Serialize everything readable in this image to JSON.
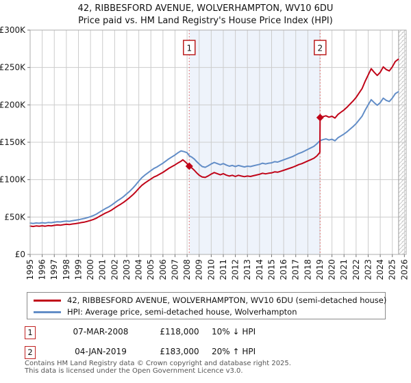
{
  "title": "42, RIBBESFORD AVENUE, WOLVERHAMPTON, WV10 6DU",
  "subtitle": "Price paid vs. HM Land Registry's House Price Index (HPI)",
  "legend": {
    "items": [
      {
        "label": "42, RIBBESFORD AVENUE, WOLVERHAMPTON, WV10 6DU (semi-detached house)",
        "color": "#c00418"
      },
      {
        "label": "HPI: Average price, semi-detached house, Wolverhampton",
        "color": "#628dc7"
      }
    ]
  },
  "annotations": [
    {
      "num": "1",
      "date": "07-MAR-2008",
      "price": "£118,000",
      "hpi_rel": "10% ↓ HPI"
    },
    {
      "num": "2",
      "date": "04-JAN-2019",
      "price": "£183,000",
      "hpi_rel": "20% ↑ HPI"
    }
  ],
  "footer": {
    "line1": "Contains HM Land Registry data © Crown copyright and database right 2025.",
    "line2": "This data is licensed under the Open Government Licence v3.0."
  },
  "chart_data": {
    "type": "line",
    "title": "42, RIBBESFORD AVENUE, WOLVERHAMPTON, WV10 6DU",
    "subtitle": "Price paid vs. HM Land Registry's House Price Index (HPI)",
    "values_unit": "GBP_thousands",
    "x_axis": {
      "min": 1995,
      "max": 2026.15,
      "ticks": [
        1995,
        1996,
        1997,
        1998,
        1999,
        2000,
        2001,
        2002,
        2003,
        2004,
        2005,
        2006,
        2007,
        2008,
        2009,
        2010,
        2011,
        2012,
        2013,
        2014,
        2015,
        2016,
        2017,
        2018,
        2019,
        2020,
        2021,
        2022,
        2023,
        2024,
        2025,
        2026
      ]
    },
    "y_axis": {
      "min": 0,
      "max": 300,
      "ticks": [
        {
          "v": 0,
          "label": "£0"
        },
        {
          "v": 50,
          "label": "£50K"
        },
        {
          "v": 100,
          "label": "£100K"
        },
        {
          "v": 150,
          "label": "£150K"
        },
        {
          "v": 200,
          "label": "£200K"
        },
        {
          "v": 250,
          "label": "£250K"
        },
        {
          "v": 300,
          "label": "£300K"
        }
      ]
    },
    "colors": {
      "price_paid": "#c00418",
      "hpi": "#628dc7",
      "sale_dash": "#e06a6a",
      "shade": "#eef3fb",
      "grid": "#cccccc",
      "spine": "#adadad",
      "hatch": "#c9c9c9",
      "sale_box_border": "#bb1c1c"
    },
    "shaded_span": [
      2008.18,
      2019.02
    ],
    "future_hatch_from": 2025.52,
    "sales": [
      {
        "label": "1",
        "year": 2008.18,
        "value_k": 118,
        "date": "07-MAR-2008",
        "price": "£118,000",
        "vs_hpi": "10% ↓ HPI"
      },
      {
        "label": "2",
        "year": 2019.02,
        "value_k": 183,
        "date": "04-JAN-2019",
        "price": "£183,000",
        "vs_hpi": "20% ↑ HPI"
      }
    ],
    "series": [
      {
        "name": "price_paid",
        "label": "42, RIBBESFORD AVENUE, WOLVERHAMPTON, WV10 6DU (semi-detached house)",
        "color": "#c00418",
        "width": 2,
        "points": [
          [
            1995.0,
            38
          ],
          [
            1995.25,
            37.4
          ],
          [
            1995.5,
            38.1
          ],
          [
            1995.75,
            37.7
          ],
          [
            1996.0,
            38.3
          ],
          [
            1996.25,
            37.8
          ],
          [
            1996.5,
            38.5
          ],
          [
            1996.75,
            38.2
          ],
          [
            1997.0,
            38.9
          ],
          [
            1997.25,
            39.4
          ],
          [
            1997.5,
            39.1
          ],
          [
            1997.75,
            39.8
          ],
          [
            1998.0,
            40.3
          ],
          [
            1998.25,
            40
          ],
          [
            1998.5,
            40.7
          ],
          [
            1998.75,
            41.2
          ],
          [
            1999.0,
            41.8
          ],
          [
            1999.25,
            42.6
          ],
          [
            1999.5,
            43.3
          ],
          [
            1999.75,
            44.3
          ],
          [
            2000.0,
            45.5
          ],
          [
            2000.25,
            46.8
          ],
          [
            2000.5,
            48.6
          ],
          [
            2000.75,
            50.9
          ],
          [
            2001.0,
            53.1
          ],
          [
            2001.25,
            55.4
          ],
          [
            2001.5,
            57.2
          ],
          [
            2001.75,
            59.4
          ],
          [
            2002.0,
            62.1
          ],
          [
            2002.25,
            64.8
          ],
          [
            2002.5,
            67.1
          ],
          [
            2002.75,
            69.8
          ],
          [
            2003.0,
            72.9
          ],
          [
            2003.25,
            76.1
          ],
          [
            2003.5,
            79.7
          ],
          [
            2003.75,
            83.7
          ],
          [
            2004.0,
            88.2
          ],
          [
            2004.25,
            92.3
          ],
          [
            2004.5,
            95.4
          ],
          [
            2004.75,
            98.1
          ],
          [
            2005.0,
            100.8
          ],
          [
            2005.25,
            103.5
          ],
          [
            2005.5,
            105.3
          ],
          [
            2005.75,
            107.6
          ],
          [
            2006.0,
            109.8
          ],
          [
            2006.25,
            112.5
          ],
          [
            2006.5,
            115.2
          ],
          [
            2006.75,
            117.5
          ],
          [
            2007.0,
            119.7
          ],
          [
            2007.25,
            122.4
          ],
          [
            2007.5,
            124.7
          ],
          [
            2007.65,
            126.5
          ],
          [
            2007.8,
            124.5
          ],
          [
            2008.0,
            121.5
          ],
          [
            2008.18,
            118
          ],
          [
            2008.4,
            115.5
          ],
          [
            2008.6,
            112.5
          ],
          [
            2008.8,
            109
          ],
          [
            2009.0,
            106
          ],
          [
            2009.25,
            103.5
          ],
          [
            2009.5,
            103
          ],
          [
            2009.75,
            105
          ],
          [
            2010.0,
            107.5
          ],
          [
            2010.25,
            109.5
          ],
          [
            2010.5,
            108
          ],
          [
            2010.75,
            106.5
          ],
          [
            2011.0,
            108
          ],
          [
            2011.25,
            106
          ],
          [
            2011.5,
            104.8
          ],
          [
            2011.75,
            105.8
          ],
          [
            2012.0,
            104.3
          ],
          [
            2012.25,
            105.8
          ],
          [
            2012.5,
            104.8
          ],
          [
            2012.75,
            104
          ],
          [
            2013.0,
            104.8
          ],
          [
            2013.25,
            104.3
          ],
          [
            2013.5,
            105.3
          ],
          [
            2013.75,
            106.2
          ],
          [
            2014.0,
            107.2
          ],
          [
            2014.25,
            108.6
          ],
          [
            2014.5,
            107.7
          ],
          [
            2014.75,
            108.6
          ],
          [
            2015.0,
            109
          ],
          [
            2015.25,
            110.4
          ],
          [
            2015.5,
            109.9
          ],
          [
            2015.75,
            111.2
          ],
          [
            2016.0,
            112.5
          ],
          [
            2016.25,
            113.9
          ],
          [
            2016.5,
            115.2
          ],
          [
            2016.75,
            116.6
          ],
          [
            2017.0,
            118.3
          ],
          [
            2017.25,
            120.1
          ],
          [
            2017.5,
            121.4
          ],
          [
            2017.75,
            123.2
          ],
          [
            2018.0,
            125
          ],
          [
            2018.25,
            126.8
          ],
          [
            2018.5,
            128.6
          ],
          [
            2018.75,
            131.7
          ],
          [
            2019.0,
            136.5
          ],
          [
            2019.02,
            183
          ],
          [
            2019.25,
            184.2
          ],
          [
            2019.5,
            185.4
          ],
          [
            2019.75,
            183.6
          ],
          [
            2020.0,
            184.8
          ],
          [
            2020.25,
            182.4
          ],
          [
            2020.5,
            187.2
          ],
          [
            2020.75,
            190.2
          ],
          [
            2021.0,
            193.2
          ],
          [
            2021.25,
            196.8
          ],
          [
            2021.5,
            201
          ],
          [
            2021.75,
            205.2
          ],
          [
            2022.0,
            210
          ],
          [
            2022.25,
            216
          ],
          [
            2022.5,
            222
          ],
          [
            2022.75,
            231.6
          ],
          [
            2023.0,
            240
          ],
          [
            2023.25,
            248.4
          ],
          [
            2023.5,
            243.6
          ],
          [
            2023.75,
            239.4
          ],
          [
            2024.0,
            243.6
          ],
          [
            2024.25,
            250.8
          ],
          [
            2024.5,
            247.2
          ],
          [
            2024.75,
            245.4
          ],
          [
            2025.0,
            250.8
          ],
          [
            2025.25,
            258
          ],
          [
            2025.5,
            261
          ]
        ]
      },
      {
        "name": "hpi",
        "label": "HPI: Average price, semi-detached house, Wolverhampton",
        "color": "#628dc7",
        "width": 2,
        "points": [
          [
            1995.0,
            42
          ],
          [
            1995.25,
            41.4
          ],
          [
            1995.5,
            42.1
          ],
          [
            1995.75,
            41.7
          ],
          [
            1996.0,
            42.4
          ],
          [
            1996.25,
            41.9
          ],
          [
            1996.5,
            42.7
          ],
          [
            1996.75,
            42.4
          ],
          [
            1997.0,
            43.1
          ],
          [
            1997.25,
            43.7
          ],
          [
            1997.5,
            43.4
          ],
          [
            1997.75,
            44.1
          ],
          [
            1998.0,
            44.6
          ],
          [
            1998.25,
            44.3
          ],
          [
            1998.5,
            45.1
          ],
          [
            1998.75,
            45.7
          ],
          [
            1999.0,
            46.4
          ],
          [
            1999.25,
            47.3
          ],
          [
            1999.5,
            48.1
          ],
          [
            1999.75,
            49.2
          ],
          [
            2000.0,
            50.5
          ],
          [
            2000.25,
            52
          ],
          [
            2000.5,
            54
          ],
          [
            2000.75,
            56.5
          ],
          [
            2001.0,
            59
          ],
          [
            2001.25,
            61.5
          ],
          [
            2001.5,
            63.5
          ],
          [
            2001.75,
            66
          ],
          [
            2002.0,
            69
          ],
          [
            2002.25,
            72
          ],
          [
            2002.5,
            74.5
          ],
          [
            2002.75,
            77.5
          ],
          [
            2003.0,
            81
          ],
          [
            2003.25,
            84.5
          ],
          [
            2003.5,
            88.5
          ],
          [
            2003.75,
            93
          ],
          [
            2004.0,
            98
          ],
          [
            2004.25,
            102.5
          ],
          [
            2004.5,
            106
          ],
          [
            2004.75,
            109
          ],
          [
            2005.0,
            112
          ],
          [
            2005.25,
            115
          ],
          [
            2005.5,
            117
          ],
          [
            2005.75,
            119.5
          ],
          [
            2006.0,
            122
          ],
          [
            2006.25,
            125
          ],
          [
            2006.5,
            128
          ],
          [
            2006.75,
            130.5
          ],
          [
            2007.0,
            133
          ],
          [
            2007.25,
            136
          ],
          [
            2007.5,
            138.5
          ],
          [
            2007.75,
            137.5
          ],
          [
            2008.0,
            136
          ],
          [
            2008.18,
            132
          ],
          [
            2008.4,
            130
          ],
          [
            2008.6,
            127.5
          ],
          [
            2008.8,
            124
          ],
          [
            2009.0,
            121
          ],
          [
            2009.25,
            117.5
          ],
          [
            2009.5,
            116.5
          ],
          [
            2009.75,
            118.5
          ],
          [
            2010.0,
            121
          ],
          [
            2010.25,
            123
          ],
          [
            2010.5,
            121.5
          ],
          [
            2010.75,
            120
          ],
          [
            2011.0,
            121.5
          ],
          [
            2011.25,
            119.5
          ],
          [
            2011.5,
            118
          ],
          [
            2011.75,
            119
          ],
          [
            2012.0,
            117.5
          ],
          [
            2012.25,
            119
          ],
          [
            2012.5,
            118
          ],
          [
            2012.75,
            117
          ],
          [
            2013.0,
            118
          ],
          [
            2013.25,
            117.5
          ],
          [
            2013.5,
            118.5
          ],
          [
            2013.75,
            119.5
          ],
          [
            2014.0,
            120.5
          ],
          [
            2014.25,
            122
          ],
          [
            2014.5,
            121
          ],
          [
            2014.75,
            122
          ],
          [
            2015.0,
            122.5
          ],
          [
            2015.25,
            124
          ],
          [
            2015.5,
            123.5
          ],
          [
            2015.75,
            125
          ],
          [
            2016.0,
            126.5
          ],
          [
            2016.25,
            128
          ],
          [
            2016.5,
            129.5
          ],
          [
            2016.75,
            131
          ],
          [
            2017.0,
            133
          ],
          [
            2017.25,
            135
          ],
          [
            2017.5,
            136.5
          ],
          [
            2017.75,
            138.5
          ],
          [
            2018.0,
            140.5
          ],
          [
            2018.25,
            142.5
          ],
          [
            2018.5,
            144.5
          ],
          [
            2018.75,
            148
          ],
          [
            2019.0,
            152
          ],
          [
            2019.25,
            153.5
          ],
          [
            2019.5,
            154.5
          ],
          [
            2019.75,
            153
          ],
          [
            2020.0,
            154
          ],
          [
            2020.25,
            152
          ],
          [
            2020.5,
            156
          ],
          [
            2020.75,
            158.5
          ],
          [
            2021.0,
            161
          ],
          [
            2021.25,
            164
          ],
          [
            2021.5,
            167.5
          ],
          [
            2021.75,
            171
          ],
          [
            2022.0,
            175
          ],
          [
            2022.25,
            180
          ],
          [
            2022.5,
            185
          ],
          [
            2022.75,
            193
          ],
          [
            2023.0,
            200
          ],
          [
            2023.25,
            207
          ],
          [
            2023.5,
            203
          ],
          [
            2023.75,
            199.5
          ],
          [
            2024.0,
            203
          ],
          [
            2024.25,
            209
          ],
          [
            2024.5,
            206
          ],
          [
            2024.75,
            204.5
          ],
          [
            2025.0,
            209
          ],
          [
            2025.25,
            215
          ],
          [
            2025.5,
            217.5
          ]
        ]
      }
    ]
  }
}
